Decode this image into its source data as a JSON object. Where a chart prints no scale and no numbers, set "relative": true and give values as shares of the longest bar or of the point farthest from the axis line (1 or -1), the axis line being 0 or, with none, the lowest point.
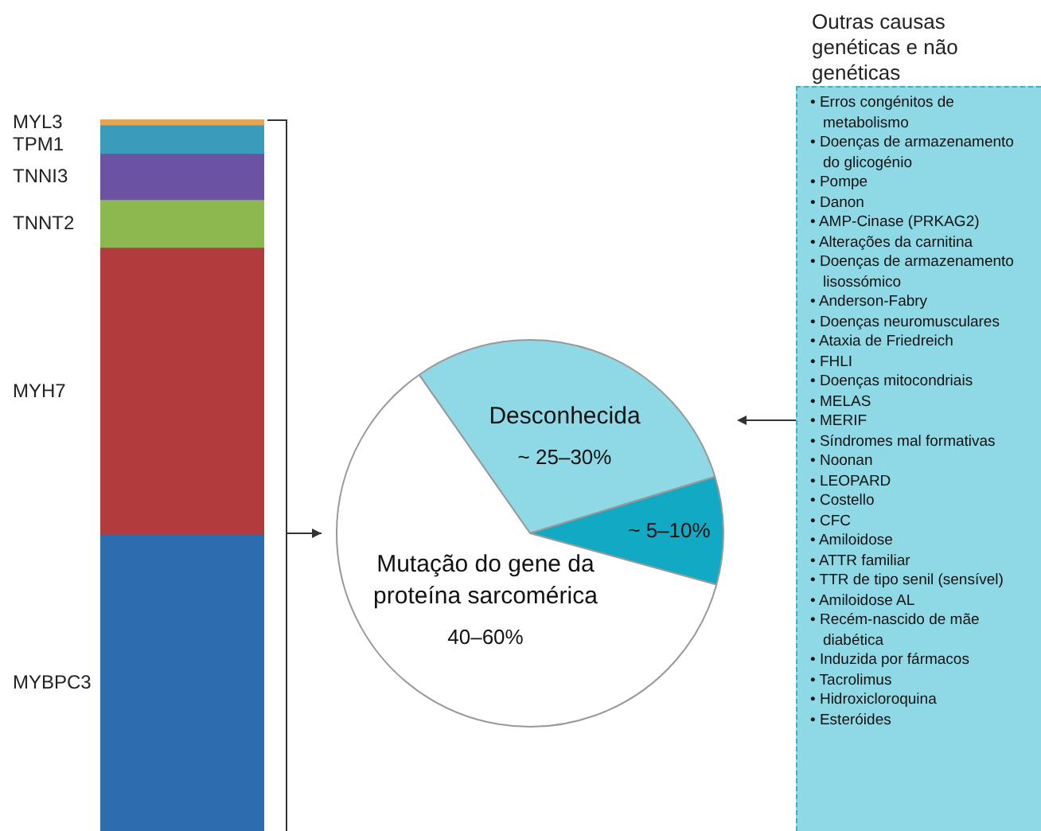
{
  "chart_data": [
    {
      "type": "bar",
      "stacked": true,
      "relative": true,
      "categories": [
        null
      ],
      "legend": false,
      "series": [
        {
          "name": "MYBPC3",
          "color": "#2e6cb0",
          "values": [
            0.416
          ]
        },
        {
          "name": "MYH7",
          "color": "#b03c3e",
          "values": [
            0.403
          ]
        },
        {
          "name": "TNNT2",
          "color": "#8cb94f",
          "values": [
            0.067
          ]
        },
        {
          "name": "TNNI3",
          "color": "#6b52a3",
          "values": [
            0.065
          ]
        },
        {
          "name": "TPM1",
          "color": "#3a9bbb",
          "values": [
            0.04
          ]
        },
        {
          "name": "MYL3",
          "color": "#e3a655",
          "values": [
            0.009
          ]
        }
      ]
    },
    {
      "type": "pie",
      "categories": [
        "Desconhecida",
        null,
        "Mutação do gene da proteína sarcomérica"
      ],
      "values": [
        30,
        9,
        61
      ],
      "colors": [
        "#8fd8e6",
        "#12a9c4",
        "#ffffff"
      ],
      "annotations": [
        "~ 25–30%",
        "~ 5–10%",
        "40–60%"
      ],
      "legend": false
    },
    {
      "type": "other",
      "title": "Outras causas genéticas e não genéticas",
      "annotations": [
        "• Erros congénitos de metabolismo",
        "• Doenças de armazenamento do glicogénio",
        "• Pompe",
        "• Danon",
        "• AMP-Cinase (PRKAG2)",
        "• Alterações da carnitina",
        "• Doenças de armazenamento lisossómico",
        "• Anderson-Fabry",
        "• Doenças neuromusculares",
        "• Ataxia de Friedreich",
        "• FHLI",
        "• Doenças mitocondriais",
        "• MELAS",
        "• MERIF",
        "• Síndromes mal formativas",
        "• Noonan",
        "• LEOPARD",
        "• Costello",
        "• CFC",
        "• Amiloidose",
        "• ATTR familiar",
        "• TTR de tipo senil (sensível)",
        "• Amiloidose AL",
        "• Recém-nascido de mãe diabética",
        "• Induzida por fármacos",
        "• Tacrolimus",
        "• Hidroxicloroquina",
        "• Esteróides"
      ]
    }
  ]
}
